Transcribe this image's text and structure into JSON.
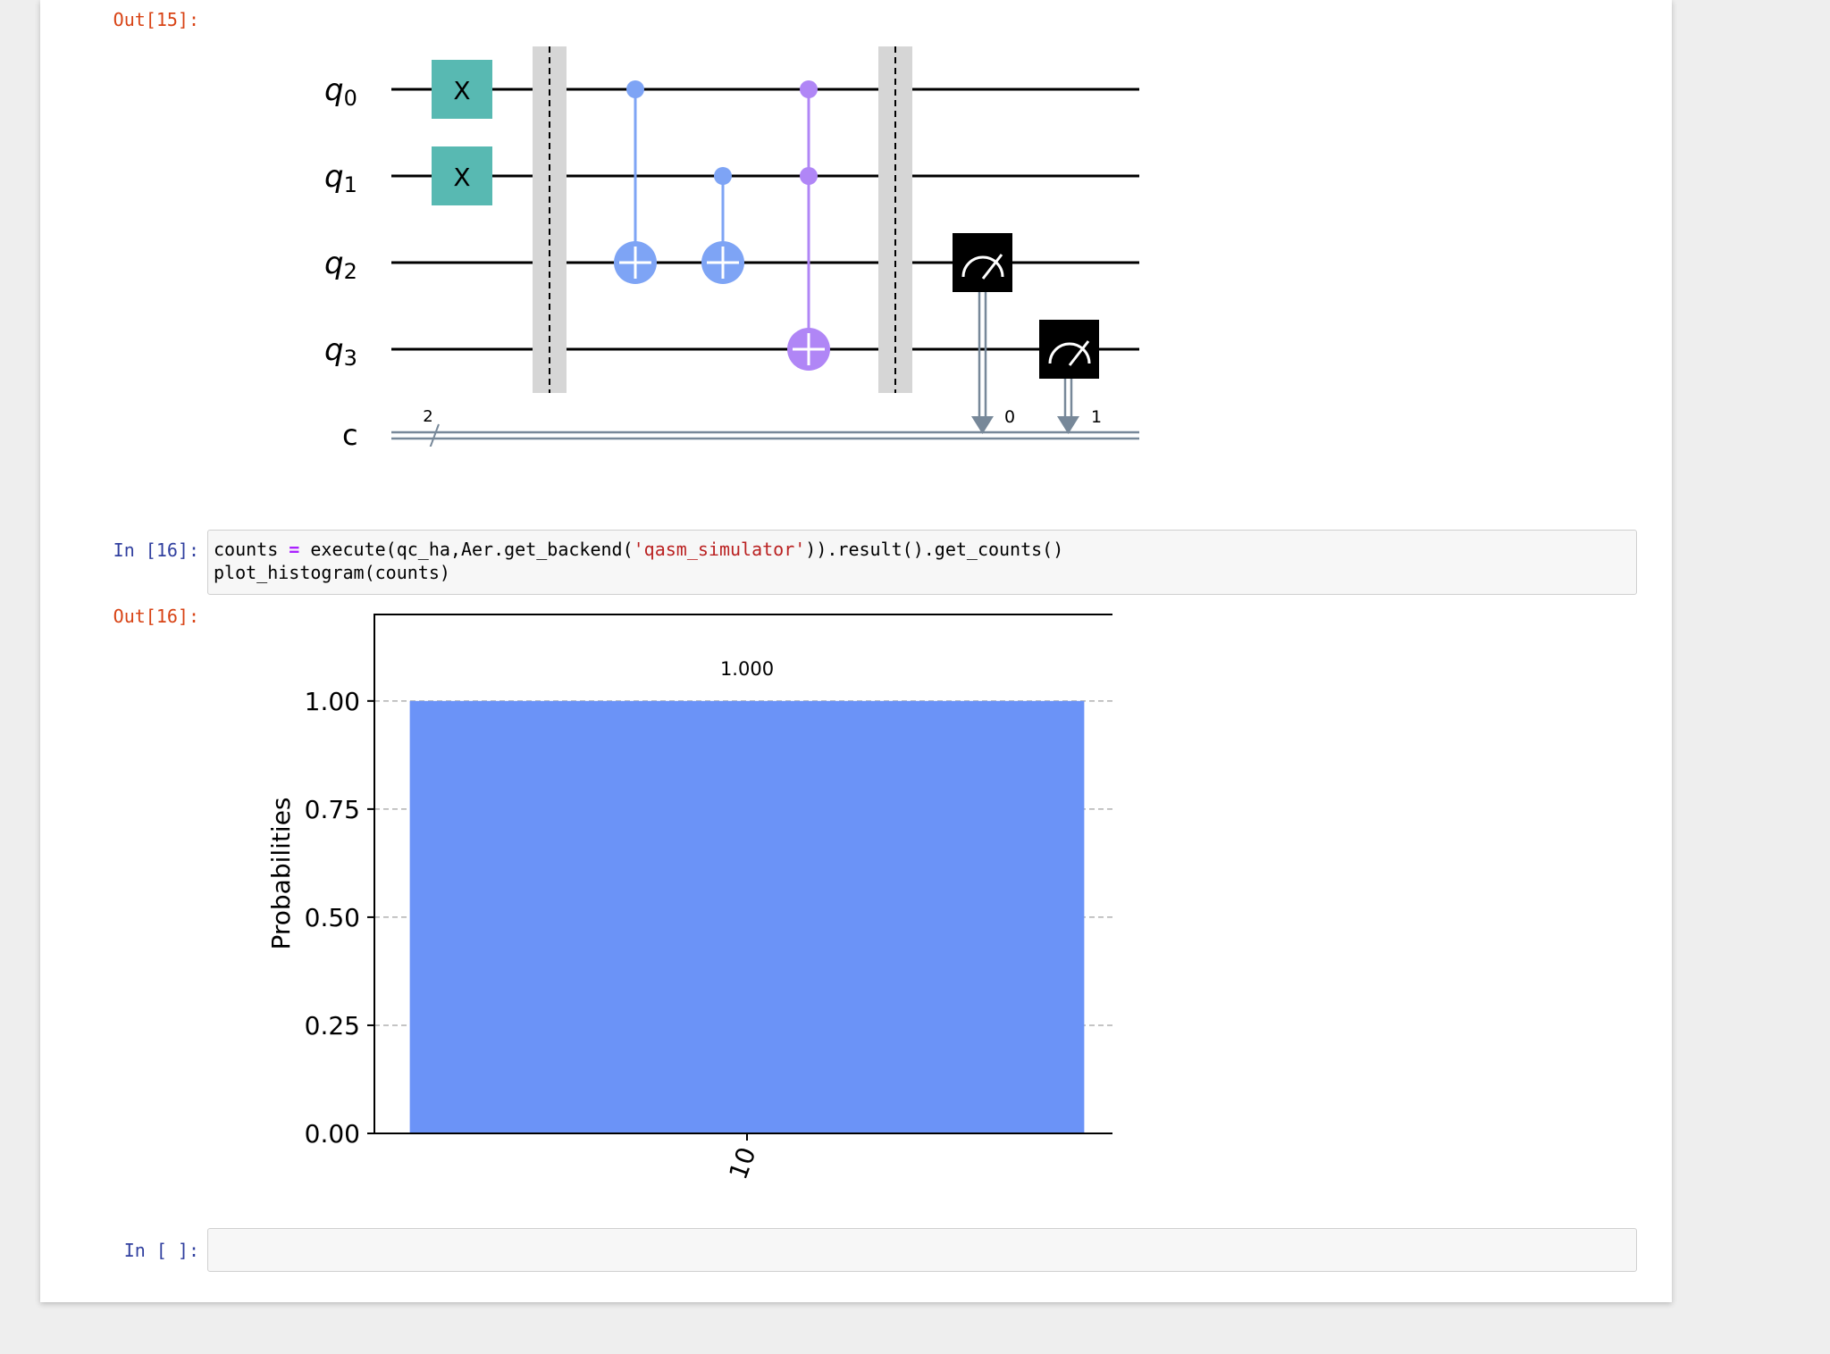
{
  "cells": {
    "out15_prompt": "Out[15]:",
    "in16_prompt": "In [16]:",
    "out16_prompt": "Out[16]:",
    "in_empty_prompt": "In [ ]:",
    "in16_code": {
      "line1": {
        "var": "counts",
        "op": "=",
        "call_start": "execute(qc_ha,Aer.get_backend(",
        "string": "'qasm_simulator'",
        "call_end": ")).result().get_counts()"
      },
      "line2": "plot_histogram(counts)"
    }
  },
  "circuit": {
    "qubits": [
      {
        "base": "q",
        "sub": "0"
      },
      {
        "base": "q",
        "sub": "1"
      },
      {
        "base": "q",
        "sub": "2"
      },
      {
        "base": "q",
        "sub": "3"
      }
    ],
    "classical_label": "c",
    "classical_size": "2",
    "x_gate_label": "X",
    "measure_bits": [
      "0",
      "1"
    ],
    "colors": {
      "x_gate": "#58b9b2",
      "cnot": "#7ea4f5",
      "toffoli": "#b086f6",
      "barrier": "#d6d6d6",
      "measure": "#000000",
      "classical_wire": "#778899"
    }
  },
  "chart_data": {
    "type": "bar",
    "categories": [
      "10"
    ],
    "values": [
      1.0
    ],
    "data_labels": [
      "1.000"
    ],
    "ylabel": "Probabilities",
    "ylim": [
      0,
      1.2
    ],
    "yticks": [
      "0.00",
      "0.25",
      "0.50",
      "0.75",
      "1.00"
    ],
    "ytick_values": [
      0,
      0.25,
      0.5,
      0.75,
      1.0
    ],
    "grid": "dashed horizontal",
    "bar_color": "#6b93f7"
  }
}
